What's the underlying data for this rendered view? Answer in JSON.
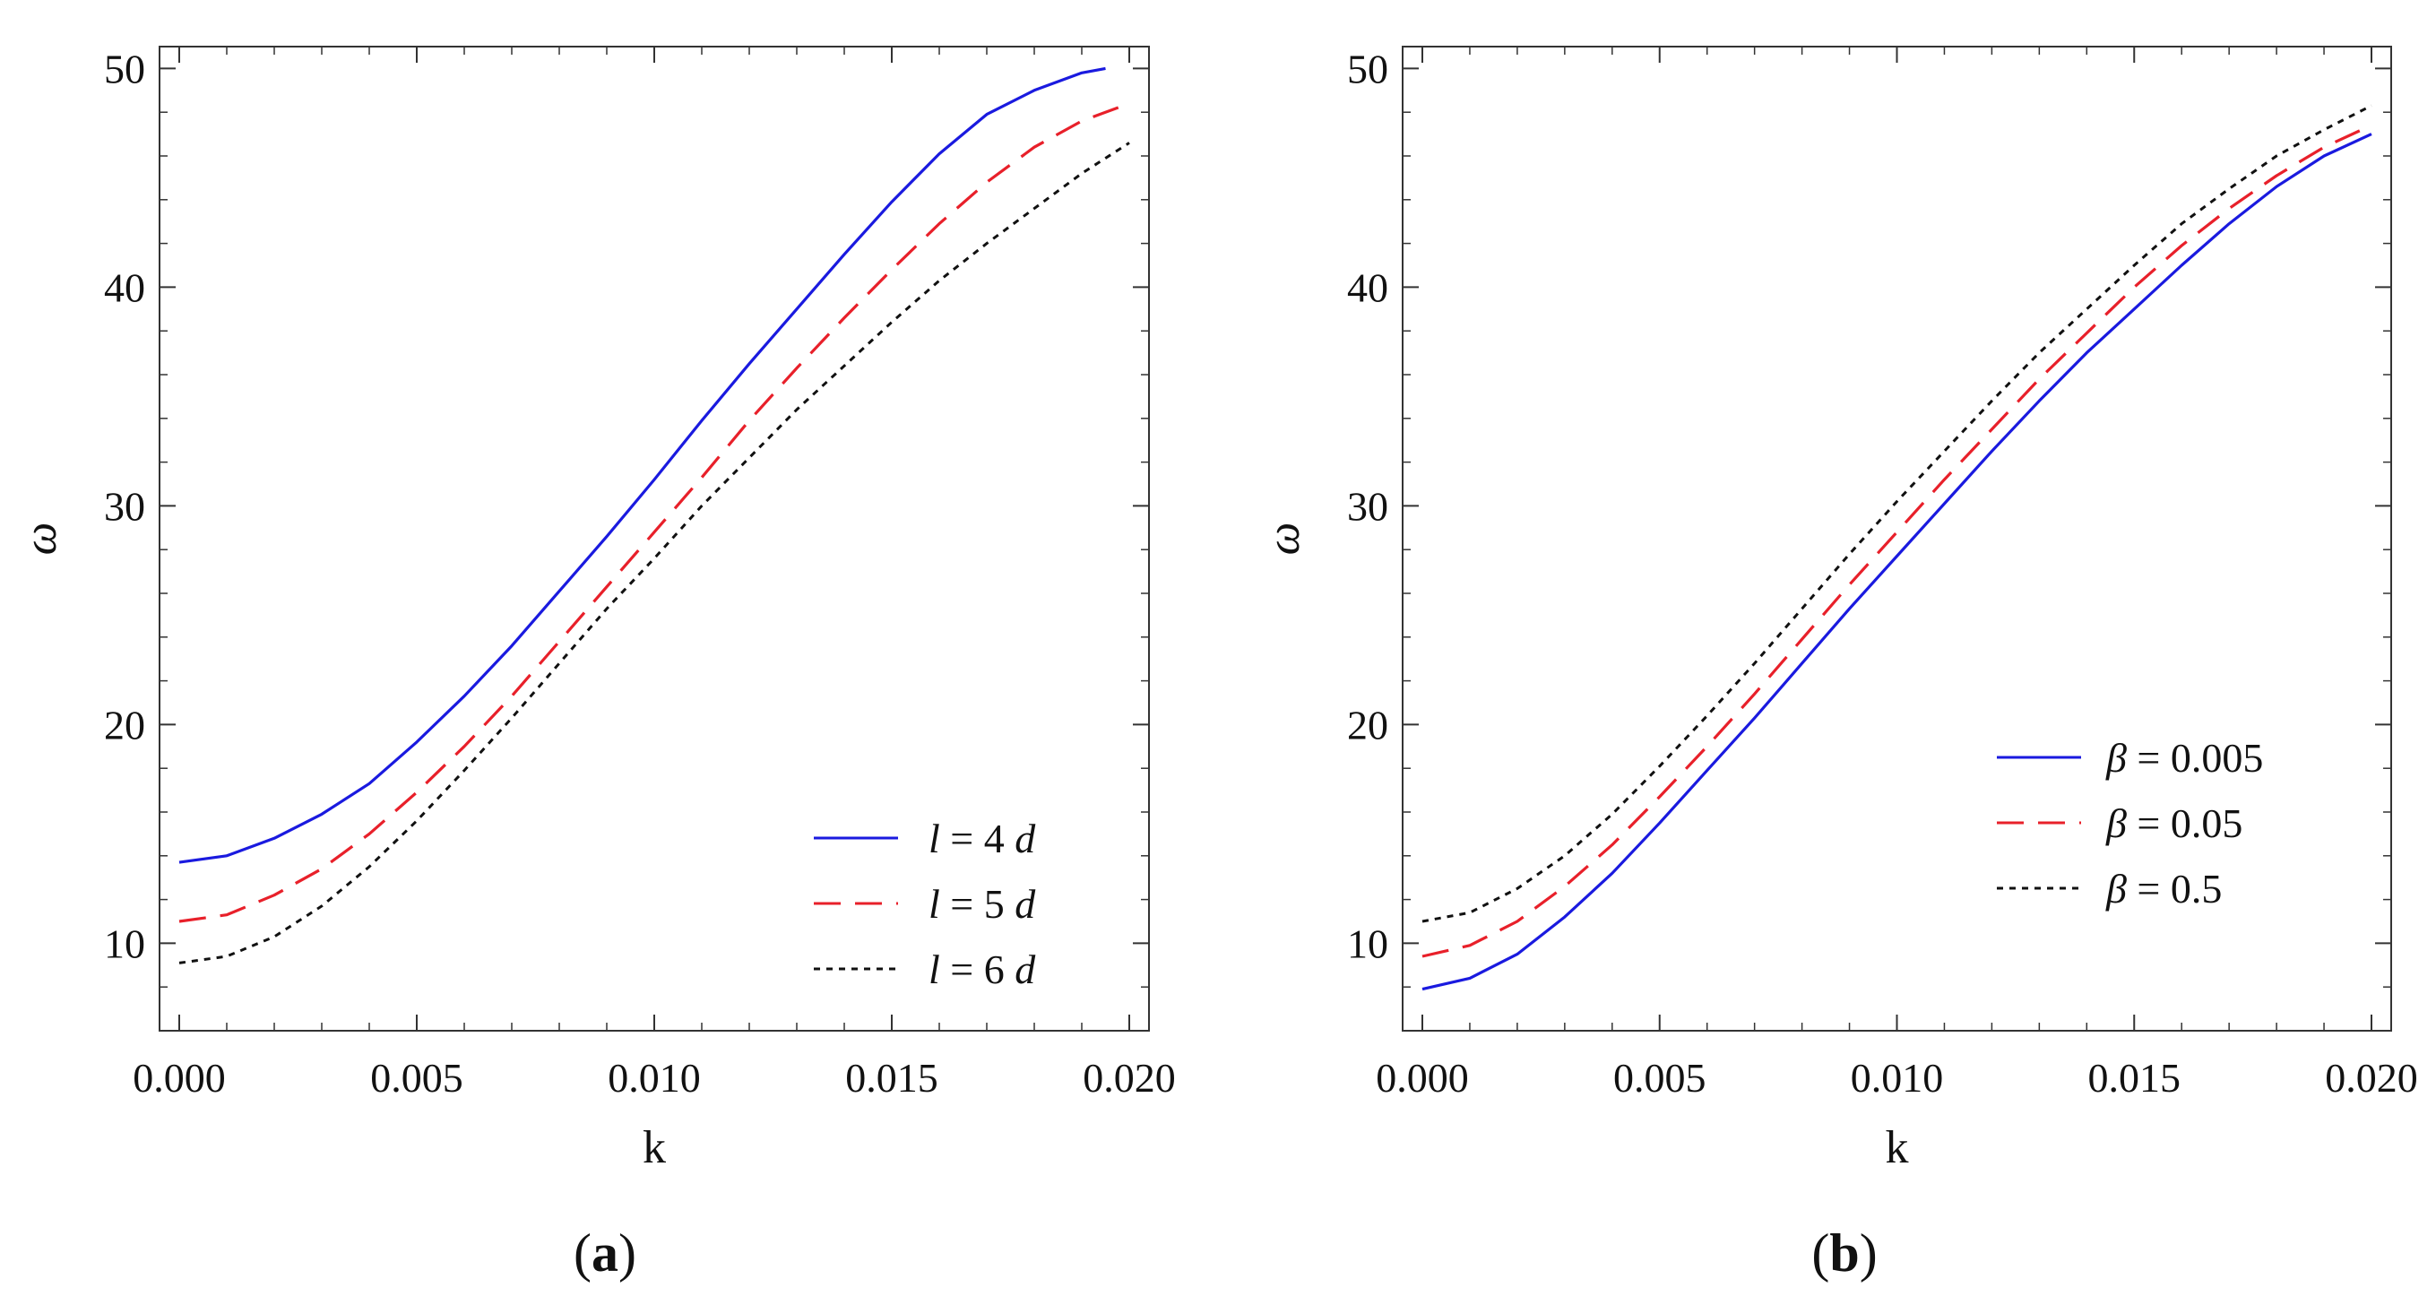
{
  "chart_data": [
    {
      "type": "line",
      "panel": "a",
      "caption_prefix": "(",
      "caption_letter": "a",
      "caption_suffix": ")",
      "xlabel": "k",
      "ylabel": "ω",
      "xlim": [
        0.0,
        0.02
      ],
      "ylim": [
        6,
        51
      ],
      "xticks": [
        0.0,
        0.005,
        0.01,
        0.015,
        0.02
      ],
      "xtick_labels": [
        "0.000",
        "0.005",
        "0.010",
        "0.015",
        "0.020"
      ],
      "yticks": [
        10,
        20,
        30,
        40,
        50
      ],
      "ytick_labels": [
        "10",
        "20",
        "30",
        "40",
        "50"
      ],
      "grid": false,
      "legend_position": "bottom-right",
      "series": [
        {
          "name": "l = 4 d",
          "legend_var": "l",
          "legend_rest": " = 4 ",
          "legend_unit": "d",
          "color": "#1a1adf",
          "style": "solid",
          "x": [
            0.0,
            0.001,
            0.002,
            0.003,
            0.004,
            0.005,
            0.006,
            0.007,
            0.008,
            0.009,
            0.01,
            0.011,
            0.012,
            0.013,
            0.014,
            0.015,
            0.016,
            0.017,
            0.018,
            0.019,
            0.0195
          ],
          "y": [
            13.7,
            14.0,
            14.8,
            15.9,
            17.3,
            19.2,
            21.3,
            23.6,
            26.1,
            28.6,
            31.2,
            33.9,
            36.5,
            39.0,
            41.5,
            43.9,
            46.1,
            47.9,
            49.0,
            49.8,
            50.0
          ]
        },
        {
          "name": "l = 5 d",
          "legend_var": "l",
          "legend_rest": " = 5 ",
          "legend_unit": "d",
          "color": "#e8202a",
          "style": "dashed",
          "x": [
            0.0,
            0.001,
            0.002,
            0.003,
            0.004,
            0.005,
            0.006,
            0.007,
            0.008,
            0.009,
            0.01,
            0.011,
            0.012,
            0.013,
            0.014,
            0.015,
            0.016,
            0.017,
            0.018,
            0.019,
            0.02
          ],
          "y": [
            11.0,
            11.3,
            12.2,
            13.4,
            15.0,
            16.9,
            19.0,
            21.3,
            23.8,
            26.3,
            28.8,
            31.3,
            33.9,
            36.3,
            38.6,
            40.8,
            42.9,
            44.8,
            46.4,
            47.6,
            48.4
          ]
        },
        {
          "name": "l = 6 d",
          "legend_var": "l",
          "legend_rest": " = 6 ",
          "legend_unit": "d",
          "color": "#111111",
          "style": "dotted",
          "x": [
            0.0,
            0.001,
            0.002,
            0.003,
            0.004,
            0.005,
            0.006,
            0.007,
            0.008,
            0.009,
            0.01,
            0.011,
            0.012,
            0.013,
            0.014,
            0.015,
            0.016,
            0.017,
            0.018,
            0.019,
            0.02
          ],
          "y": [
            9.1,
            9.4,
            10.3,
            11.7,
            13.5,
            15.6,
            17.9,
            20.3,
            22.8,
            25.3,
            27.6,
            30.0,
            32.2,
            34.4,
            36.4,
            38.4,
            40.3,
            42.0,
            43.6,
            45.2,
            46.6
          ]
        }
      ]
    },
    {
      "type": "line",
      "panel": "b",
      "caption_prefix": "(",
      "caption_letter": "b",
      "caption_suffix": ")",
      "xlabel": "k",
      "ylabel": "ω",
      "xlim": [
        0.0,
        0.02
      ],
      "ylim": [
        6,
        51
      ],
      "xticks": [
        0.0,
        0.005,
        0.01,
        0.015,
        0.02
      ],
      "xtick_labels": [
        "0.000",
        "0.005",
        "0.010",
        "0.015",
        "0.020"
      ],
      "yticks": [
        10,
        20,
        30,
        40,
        50
      ],
      "ytick_labels": [
        "10",
        "20",
        "30",
        "40",
        "50"
      ],
      "grid": false,
      "legend_position": "middle-right",
      "series": [
        {
          "name": "β = 0.005",
          "legend_var": "β",
          "legend_rest": " = 0.005",
          "legend_unit": "",
          "color": "#1a1adf",
          "style": "solid",
          "x": [
            0.0,
            0.001,
            0.002,
            0.003,
            0.004,
            0.005,
            0.006,
            0.007,
            0.008,
            0.009,
            0.01,
            0.011,
            0.012,
            0.013,
            0.014,
            0.015,
            0.016,
            0.017,
            0.018,
            0.019,
            0.02
          ],
          "y": [
            7.9,
            8.4,
            9.5,
            11.2,
            13.2,
            15.5,
            17.9,
            20.3,
            22.8,
            25.3,
            27.7,
            30.1,
            32.5,
            34.8,
            37.0,
            39.0,
            41.0,
            42.9,
            44.6,
            46.0,
            47.0
          ]
        },
        {
          "name": "β = 0.05",
          "legend_var": "β",
          "legend_rest": " = 0.05",
          "legend_unit": "",
          "color": "#e8202a",
          "style": "dashed",
          "x": [
            0.0,
            0.001,
            0.002,
            0.003,
            0.004,
            0.005,
            0.006,
            0.007,
            0.008,
            0.009,
            0.01,
            0.011,
            0.012,
            0.013,
            0.014,
            0.015,
            0.016,
            0.017,
            0.018,
            0.019,
            0.02
          ],
          "y": [
            9.4,
            9.9,
            11.0,
            12.6,
            14.5,
            16.7,
            19.0,
            21.4,
            23.9,
            26.4,
            28.8,
            31.2,
            33.5,
            35.8,
            37.9,
            40.0,
            41.9,
            43.6,
            45.1,
            46.4,
            47.4
          ]
        },
        {
          "name": "β = 0.5",
          "legend_var": "β",
          "legend_rest": " = 0.5",
          "legend_unit": "",
          "color": "#111111",
          "style": "dotted",
          "x": [
            0.0,
            0.001,
            0.002,
            0.003,
            0.004,
            0.005,
            0.006,
            0.007,
            0.008,
            0.009,
            0.01,
            0.011,
            0.012,
            0.013,
            0.014,
            0.015,
            0.016,
            0.017,
            0.018,
            0.019,
            0.02
          ],
          "y": [
            11.0,
            11.4,
            12.5,
            14.0,
            15.9,
            18.1,
            20.4,
            22.8,
            25.3,
            27.8,
            30.2,
            32.5,
            34.8,
            37.0,
            39.0,
            41.0,
            42.9,
            44.5,
            46.0,
            47.2,
            48.3
          ]
        }
      ]
    }
  ]
}
